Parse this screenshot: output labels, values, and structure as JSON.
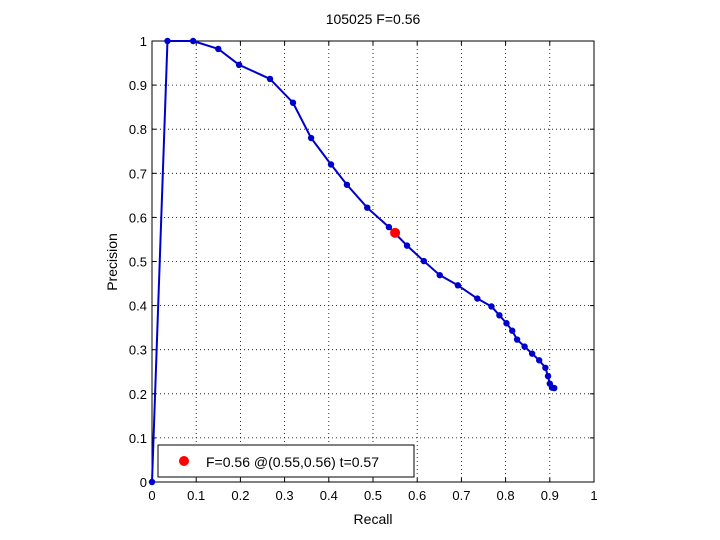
{
  "chart_data": {
    "type": "line",
    "title": "105025 F=0.56",
    "xlabel": "Recall",
    "ylabel": "Precision",
    "xlim": [
      0,
      1
    ],
    "ylim": [
      0,
      1
    ],
    "x_ticks": [
      "0",
      "0.1",
      "0.2",
      "0.3",
      "0.4",
      "0.5",
      "0.6",
      "0.7",
      "0.8",
      "0.9",
      "1"
    ],
    "y_ticks": [
      "0",
      "0.1",
      "0.2",
      "0.3",
      "0.4",
      "0.5",
      "0.6",
      "0.7",
      "0.8",
      "0.9",
      "1"
    ],
    "grid": true,
    "line_color": "#0000cc",
    "marker_color": "#0000cc",
    "highlight_color": "#ff0000",
    "series": [
      {
        "x": [
          0.0,
          0.035,
          0.093,
          0.15,
          0.197,
          0.267,
          0.319,
          0.36,
          0.405,
          0.441,
          0.487,
          0.536,
          0.577,
          0.615,
          0.651,
          0.692,
          0.736,
          0.768,
          0.786,
          0.802,
          0.815,
          0.826,
          0.843,
          0.86,
          0.876,
          0.89,
          0.896,
          0.9,
          0.905,
          0.91
        ],
        "y": [
          0.0,
          1.0,
          1.0,
          0.982,
          0.946,
          0.914,
          0.86,
          0.78,
          0.72,
          0.674,
          0.622,
          0.578,
          0.536,
          0.501,
          0.469,
          0.446,
          0.416,
          0.398,
          0.378,
          0.36,
          0.343,
          0.323,
          0.307,
          0.291,
          0.276,
          0.259,
          0.24,
          0.223,
          0.214,
          0.213
        ]
      }
    ],
    "highlight_point": {
      "x": 0.55,
      "y": 0.565
    },
    "legend": {
      "position": "bottom-left",
      "label": "F=0.56 @(0.55,0.56) t=0.57"
    }
  }
}
